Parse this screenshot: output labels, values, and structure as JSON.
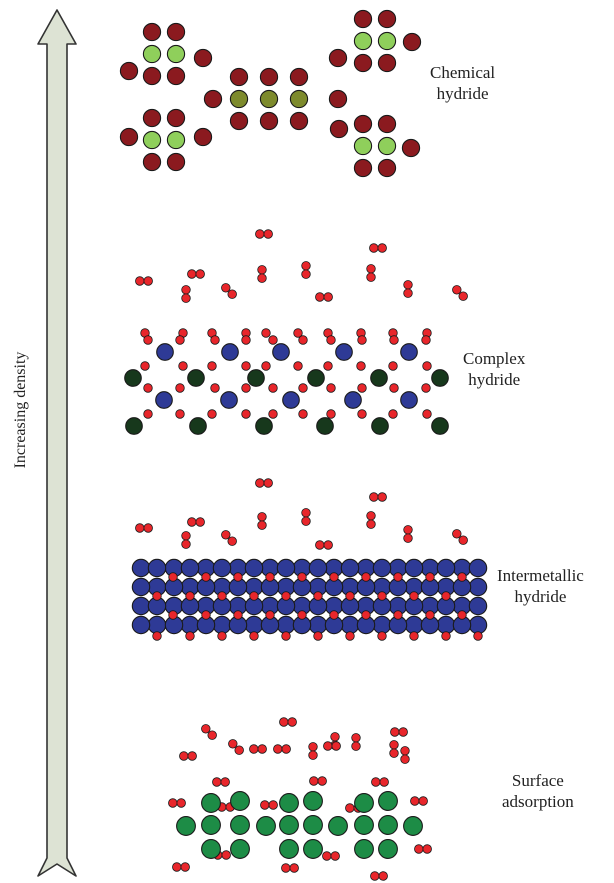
{
  "axis": {
    "label": "Increasing density"
  },
  "levels": [
    {
      "name": "chemical",
      "line1": "Chemical",
      "line2": "hydride"
    },
    {
      "name": "complex",
      "line1": "Complex",
      "line2": "hydride"
    },
    {
      "name": "intermetallic",
      "line1": "Intermetallic",
      "line2": "hydride"
    },
    {
      "name": "surface",
      "line1": "Surface",
      "line2": "adsorption"
    }
  ],
  "colors": {
    "arrow_fill": "#dde3d4",
    "arrow_stroke": "#333333",
    "hydrogen": "#e8262b",
    "dark_red": "#8b1a1f",
    "light_green": "#8fcf5b",
    "olive": "#7d8a2c",
    "navy": "#2e3a96",
    "dark_green": "#17381c",
    "green": "#1d8c46"
  }
}
